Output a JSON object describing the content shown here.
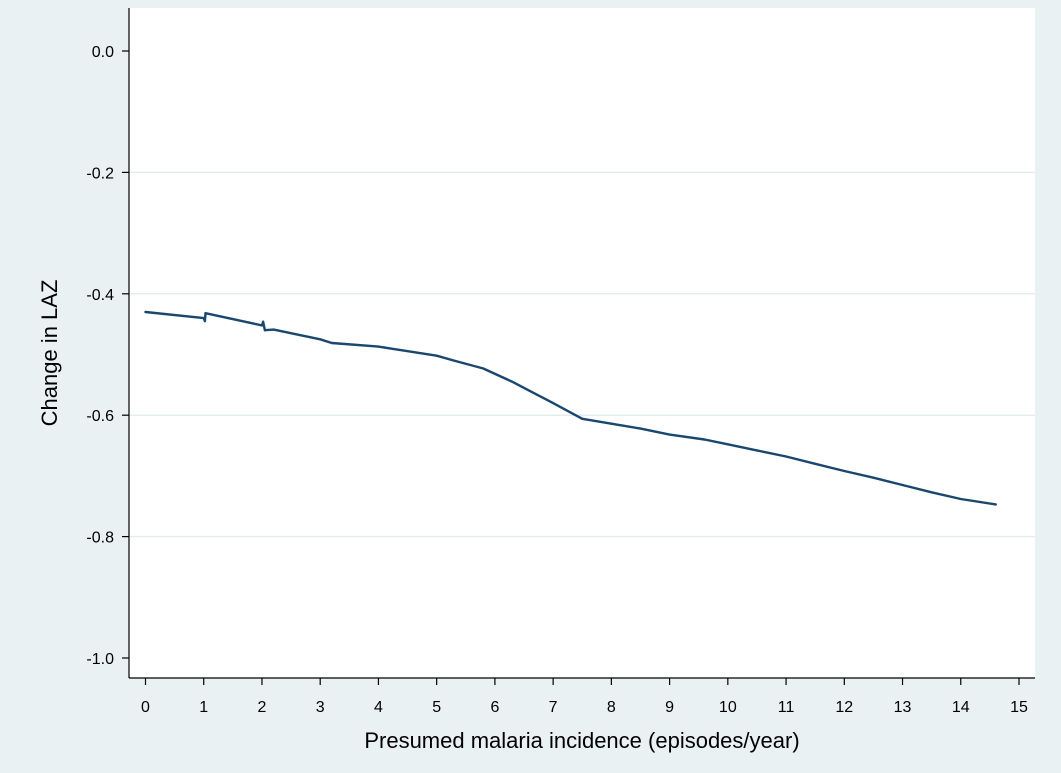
{
  "chart_data": {
    "type": "line",
    "title": "",
    "xlabel": "Presumed malaria incidence (episodes/year)",
    "ylabel": "Change in LAZ",
    "xlim": [
      0,
      15
    ],
    "ylim": [
      -1.0,
      0.0
    ],
    "x_ticks": [
      0,
      1,
      2,
      3,
      4,
      5,
      6,
      7,
      8,
      9,
      10,
      11,
      12,
      13,
      14,
      15
    ],
    "x_tick_labels": [
      "0",
      "1",
      "2",
      "3",
      "4",
      "5",
      "6",
      "7",
      "8",
      "9",
      "10",
      "11",
      "12",
      "13",
      "14",
      "15"
    ],
    "y_ticks": [
      0.0,
      -0.2,
      -0.4,
      -0.6,
      -0.8,
      -1.0
    ],
    "y_tick_labels": [
      "0.0",
      "-0.2",
      "-0.4",
      "-0.6",
      "-0.8",
      "-1.0"
    ],
    "grid": "horizontal",
    "legend": "none",
    "line_color": "#1a476f",
    "plot_background": "#ffffff",
    "outer_background": "#eaf1f3",
    "series": [
      {
        "x": [
          0,
          1.0,
          1.02,
          1.03,
          2.0,
          2.02,
          2.05,
          2.2,
          3.0,
          3.2,
          4.0,
          4.2,
          5.0,
          5.3,
          5.8,
          6.3,
          6.6,
          7.0,
          7.5,
          8.0,
          8.5,
          9.0,
          9.6,
          10.0,
          10.5,
          11.0,
          11.5,
          12.0,
          12.5,
          13.0,
          13.5,
          14.0,
          14.6
        ],
        "y": [
          -0.43,
          -0.44,
          -0.445,
          -0.432,
          -0.452,
          -0.446,
          -0.46,
          -0.459,
          -0.475,
          -0.481,
          -0.487,
          -0.49,
          -0.502,
          -0.51,
          -0.523,
          -0.545,
          -0.56,
          -0.58,
          -0.606,
          -0.614,
          -0.622,
          -0.632,
          -0.64,
          -0.648,
          -0.658,
          -0.668,
          -0.68,
          -0.692,
          -0.703,
          -0.715,
          -0.727,
          -0.738,
          -0.747
        ]
      }
    ]
  }
}
